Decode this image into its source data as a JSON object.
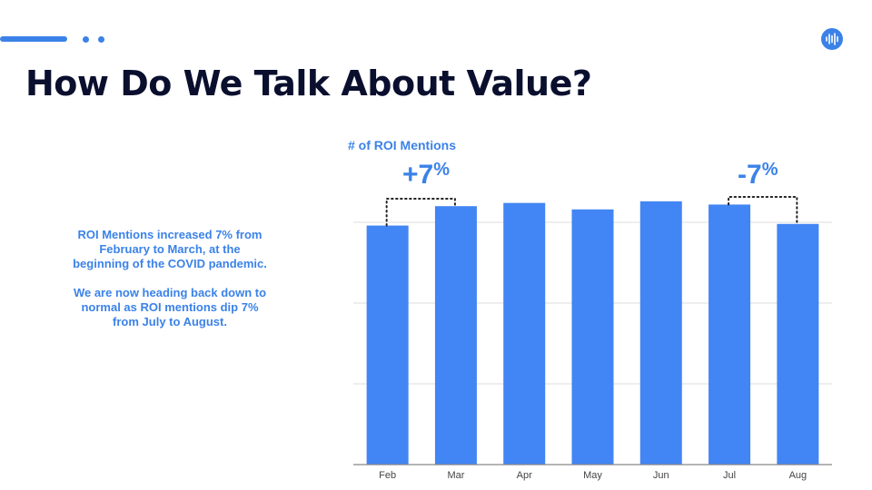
{
  "slide": {
    "title": "How Do We Talk About Value?",
    "description": [
      "ROI Mentions increased 7% from February to March, at the beginning of the COVID pandemic.",
      "We are now heading back down to normal as ROI mentions dip 7% from July to August."
    ],
    "logo_icon": "sound-wave-icon",
    "accent_color": "#3b82e8"
  },
  "chart_data": {
    "type": "bar",
    "title": "# of ROI Mentions",
    "categories": [
      "Feb",
      "Mar",
      "Apr",
      "May",
      "Jun",
      "Jul",
      "Aug"
    ],
    "values": [
      74,
      80,
      81,
      79,
      81.5,
      80.5,
      74.5
    ],
    "ylim": [
      0,
      100
    ],
    "grid": true,
    "bar_color": "#4285f4",
    "annotations": [
      {
        "value": "+7",
        "unit": "%",
        "from": "Feb",
        "to": "Mar"
      },
      {
        "value": "-7",
        "unit": "%",
        "from": "Jul",
        "to": "Aug"
      }
    ]
  }
}
